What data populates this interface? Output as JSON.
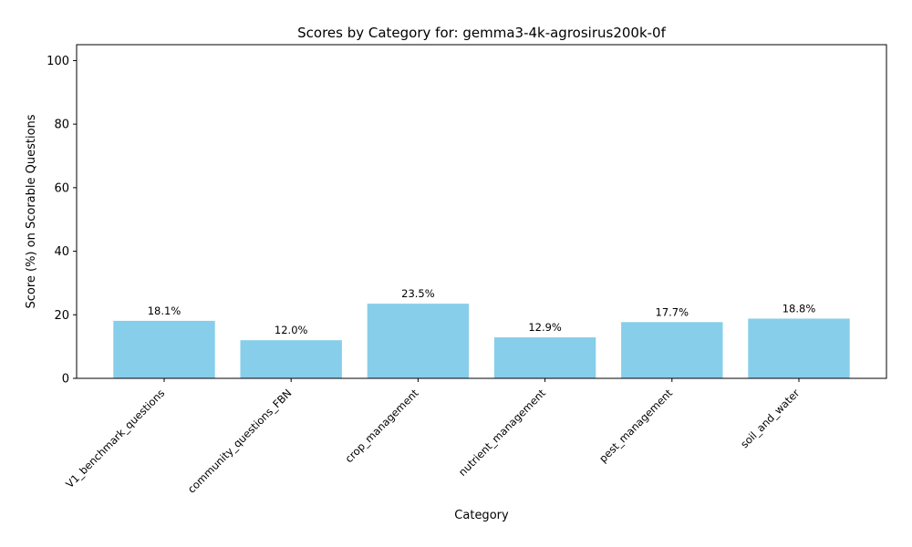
{
  "chart_data": {
    "type": "bar",
    "title": "Scores by Category for: gemma3-4k-agrosirus200k-0f",
    "xlabel": "Category",
    "ylabel": "Score (%) on Scorable Questions",
    "categories": [
      "V1_benchmark_questions",
      "community_questions_FBN",
      "crop_management",
      "nutrient_management",
      "pest_management",
      "soil_and_water"
    ],
    "values": [
      18.1,
      12.0,
      23.5,
      12.9,
      17.7,
      18.8
    ],
    "value_labels": [
      "18.1%",
      "12.0%",
      "23.5%",
      "12.9%",
      "17.7%",
      "18.8%"
    ],
    "ylim": [
      0,
      105
    ],
    "yticks": [
      0,
      20,
      40,
      60,
      80,
      100
    ],
    "bar_color": "#87ceeb",
    "grid": false,
    "legend": "none"
  }
}
